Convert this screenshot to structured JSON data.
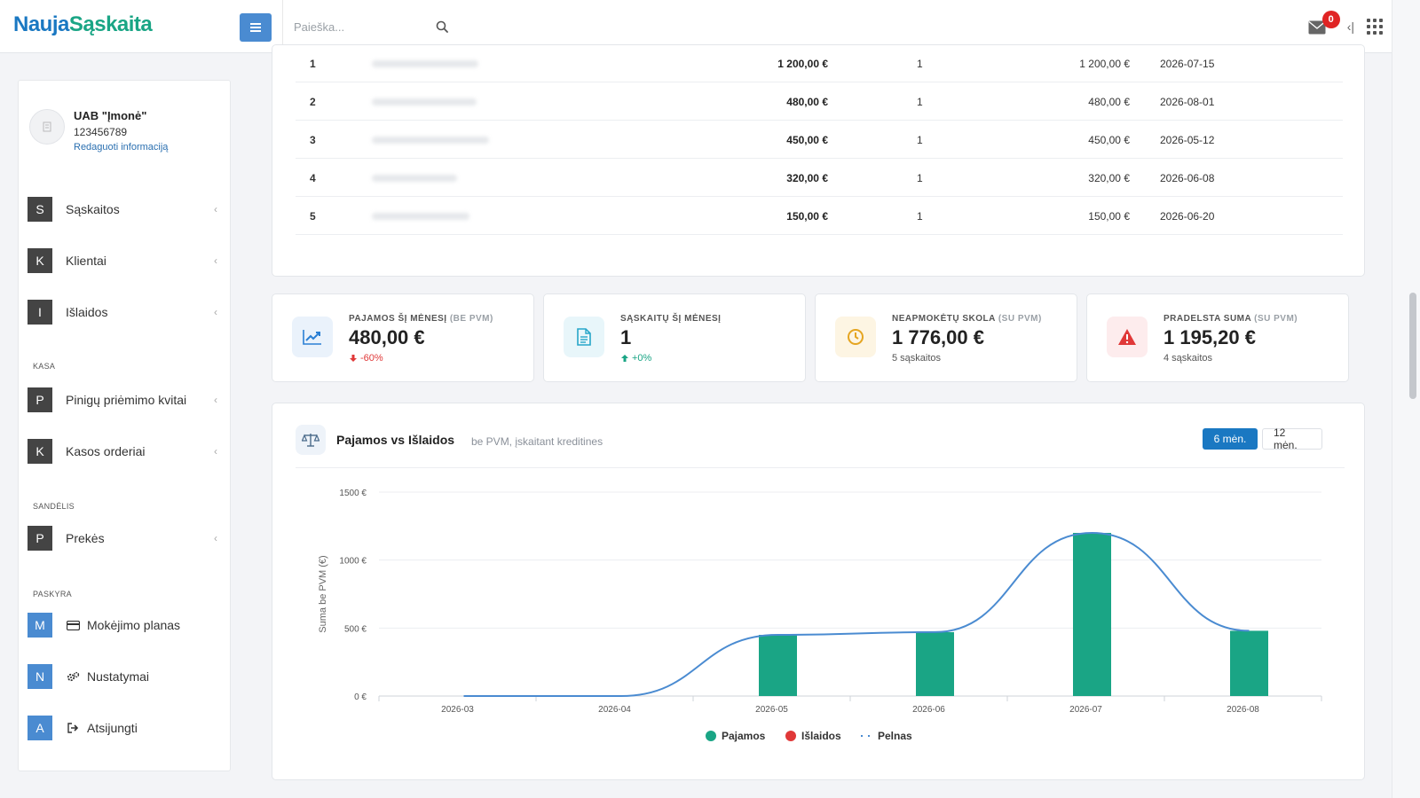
{
  "brand": {
    "part1": "Nauja",
    "part2": "Sąskaita"
  },
  "header": {
    "search_placeholder": "Paieška...",
    "mail_count": "0"
  },
  "company": {
    "name": "UAB \"Įmonė\"",
    "code": "123456789",
    "edit_label": "Redaguoti informaciją"
  },
  "sidebar": {
    "items": [
      {
        "letter": "S",
        "label": "Sąskaitos"
      },
      {
        "letter": "K",
        "label": "Klientai"
      },
      {
        "letter": "I",
        "label": "Išlaidos"
      }
    ],
    "section_kasa": "KASA",
    "kasa_items": [
      {
        "letter": "P",
        "label": "Pinigų priėmimo kvitai"
      },
      {
        "letter": "K",
        "label": "Kasos orderiai"
      }
    ],
    "section_sandelis": "SANDĖLIS",
    "sandelis_items": [
      {
        "letter": "P",
        "label": "Prekės"
      }
    ],
    "section_paskyra": "PASKYRA",
    "paskyra_items": [
      {
        "letter": "M",
        "label": "Mokėjimo planas",
        "icon": "credit-card-icon"
      },
      {
        "letter": "N",
        "label": "Nustatymai",
        "icon": "gears-icon"
      },
      {
        "letter": "A",
        "label": "Atsijungti",
        "icon": "sign-out-icon"
      }
    ]
  },
  "top_table": {
    "rows": [
      {
        "num": "1",
        "amount": "1 200,00 €",
        "qty": "1",
        "total": "1 200,00 €",
        "date": "2026-07-15"
      },
      {
        "num": "2",
        "amount": "480,00 €",
        "qty": "1",
        "total": "480,00 €",
        "date": "2026-08-01"
      },
      {
        "num": "3",
        "amount": "450,00 €",
        "qty": "1",
        "total": "450,00 €",
        "date": "2026-05-12"
      },
      {
        "num": "4",
        "amount": "320,00 €",
        "qty": "1",
        "total": "320,00 €",
        "date": "2026-06-08"
      },
      {
        "num": "5",
        "amount": "150,00 €",
        "qty": "1",
        "total": "150,00 €",
        "date": "2026-06-20"
      }
    ]
  },
  "stats": [
    {
      "label": "PAJAMOS ŠĮ MĖNESĮ",
      "label_sub": "(BE PVM)",
      "value": "480,00 €",
      "foot": "-60%",
      "trend": "down",
      "icon": "chart-line-icon",
      "accent": "#2a7fd4"
    },
    {
      "label": "SĄSKAITŲ ŠĮ MĖNESĮ",
      "label_sub": "",
      "value": "1",
      "foot": "+0%",
      "trend": "up",
      "icon": "document-icon",
      "accent": "#27a6c9"
    },
    {
      "label": "NEAPMOKĖTŲ SKOLA",
      "label_sub": "(SU PVM)",
      "value": "1 776,00 €",
      "foot": "5 sąskaitos",
      "trend": "none",
      "icon": "clock-icon",
      "accent": "#e5a521"
    },
    {
      "label": "PRADELSTA SUMA",
      "label_sub": "(SU PVM)",
      "value": "1 195,20 €",
      "foot": "4 sąskaitos",
      "trend": "none",
      "icon": "warning-icon",
      "accent": "#e03838"
    }
  ],
  "chart_panel": {
    "title": "Pajamos vs Išlaidos",
    "subtitle": "be PVM, įskaitant kreditines",
    "btn_6": "6 mėn.",
    "btn_12": "12 mėn.",
    "active_range": "6 mėn."
  },
  "colors": {
    "income": "#1aa585",
    "expenses": "#e03838",
    "profit": "#4a8bd1",
    "brand_blue": "#1a78c2",
    "brand_green": "#1aa585"
  },
  "chart_data": {
    "type": "bar",
    "categories": [
      "2026-03",
      "2026-04",
      "2026-05",
      "2026-06",
      "2026-07",
      "2026-08"
    ],
    "series": [
      {
        "name": "Pajamos",
        "type": "bar",
        "values": [
          0,
          0,
          450,
          470,
          1200,
          480
        ]
      },
      {
        "name": "Išlaidos",
        "type": "bar",
        "values": [
          0,
          0,
          0,
          0,
          0,
          0
        ]
      },
      {
        "name": "Pelnas",
        "type": "line",
        "values": [
          0,
          0,
          450,
          470,
          1200,
          480
        ]
      }
    ],
    "ylabel": "Suma be PVM (€)",
    "ylim": [
      0,
      1500
    ],
    "yticks": [
      0,
      500,
      1000,
      1500
    ],
    "ytick_labels": [
      "0 €",
      "500 €",
      "1000 €",
      "1500 €"
    ],
    "grid": true,
    "legend": "bottom"
  }
}
